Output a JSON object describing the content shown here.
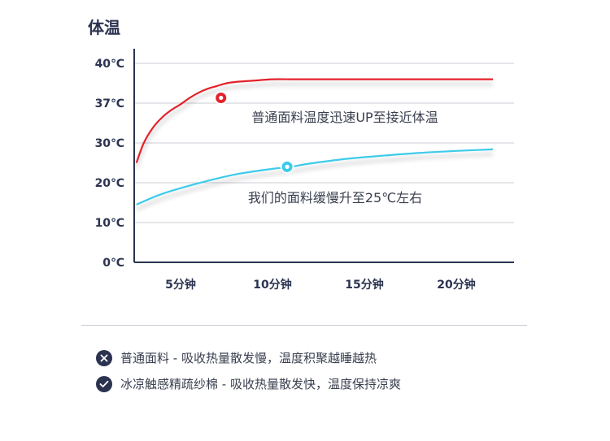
{
  "title": "体温",
  "colors": {
    "axis": "#2b3350",
    "grid": "#c9ccd4",
    "regular_fabric": "#e3232b",
    "cooling_fabric": "#3ccbea",
    "badge": "#2b3350"
  },
  "chart_data": {
    "type": "line",
    "x_tick_labels": [
      "5分钟",
      "10分钟",
      "15分钟",
      "20分钟"
    ],
    "x_ticks": [
      5,
      10,
      15,
      20
    ],
    "xlim": [
      2.2,
      22.4
    ],
    "y_tick_labels": [
      "0℃",
      "10℃",
      "20℃",
      "30℃",
      "37℃",
      "40℃"
    ],
    "grid": true,
    "series": [
      {
        "color_key": "regular_fabric",
        "x": [
          2.6,
          3.0,
          3.5,
          4.0,
          4.5,
          5.0,
          5.5,
          6.0,
          6.5,
          7.0,
          7.5,
          8.0,
          9.0,
          10.0,
          11.0,
          12.0,
          14.0,
          16.0,
          18.0,
          20.0,
          22.0
        ],
        "y": [
          25,
          30,
          32.7,
          34.5,
          35.8,
          36.8,
          37.4,
          37.8,
          38.1,
          38.3,
          38.5,
          38.6,
          38.7,
          38.8,
          38.8,
          38.8,
          38.8,
          38.8,
          38.8,
          38.8,
          38.8
        ],
        "marker": {
          "x": 7.2,
          "y": 37.4
        },
        "annotation": "普通面料温度迅速UP至接近体温"
      },
      {
        "color_key": "cooling_fabric",
        "x": [
          2.6,
          4,
          6,
          8,
          10,
          11,
          12,
          14,
          16,
          18,
          20,
          22
        ],
        "y": [
          14.5,
          17.2,
          19.9,
          22.1,
          23.5,
          24,
          24.8,
          26,
          26.8,
          27.5,
          28.0,
          28.4
        ],
        "marker": {
          "x": 10.8,
          "y": 24.0
        },
        "annotation": "我们的面料缓慢升至25℃左右"
      }
    ]
  },
  "legend": [
    {
      "icon": "x-circle-icon",
      "text": "普通面料 - 吸收热量散发慢，温度积聚越睡越热"
    },
    {
      "icon": "check-circle-icon",
      "text": "冰凉触感精疏纱棉 - 吸收热量散发快，温度保持凉爽"
    }
  ]
}
